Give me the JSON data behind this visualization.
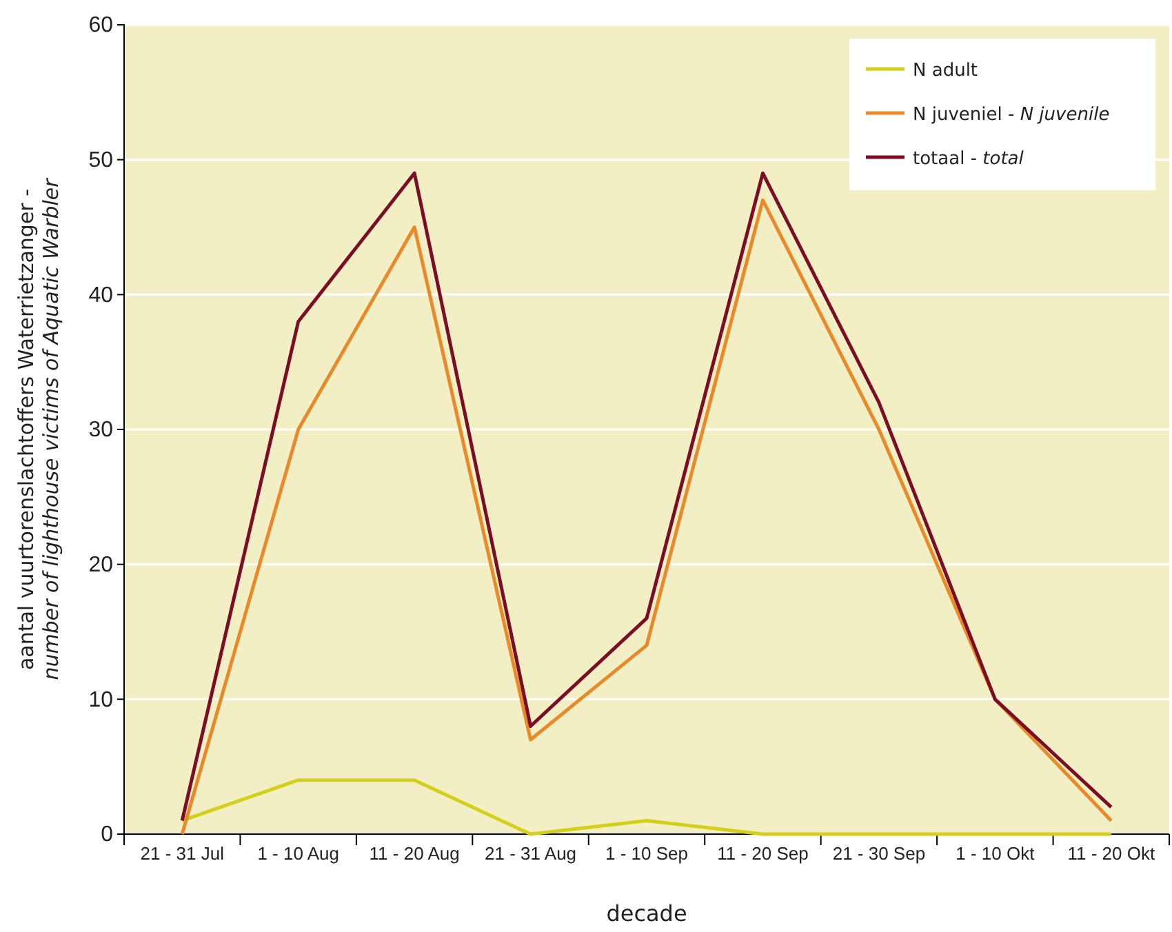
{
  "chart_data": {
    "type": "line",
    "xlabel": "decade",
    "ylabel": "aantal vuurtorenslachtoffers Waterrietzanger - number of lighthouse victims of Aquatic Warbler",
    "categories": [
      "21 - 31 Jul",
      "1 - 10 Aug",
      "11 - 20 Aug",
      "21 - 31 Aug",
      "1 - 10 Sep",
      "11 - 20 Sep",
      "21 - 30 Sep",
      "1 - 10 Okt",
      "11 - 20 Okt"
    ],
    "series": [
      {
        "name": "N adult",
        "color": "#d4cf1a",
        "values": [
          1,
          4,
          4,
          0,
          1,
          0,
          0,
          0,
          0
        ]
      },
      {
        "name": "N juveniel - N juvenile",
        "color": "#e8892a",
        "values": [
          0,
          30,
          45,
          7,
          14,
          47,
          30,
          10,
          1
        ]
      },
      {
        "name": "totaal - total",
        "color": "#7a0e25",
        "values": [
          1,
          38,
          49,
          8,
          16,
          49,
          32,
          10,
          2
        ]
      }
    ],
    "ylim": [
      0,
      60
    ],
    "yticks": [
      0,
      10,
      20,
      30,
      40,
      50,
      60
    ],
    "grid": "y",
    "legend": "top right",
    "marker": "none",
    "line_style": "solid"
  }
}
